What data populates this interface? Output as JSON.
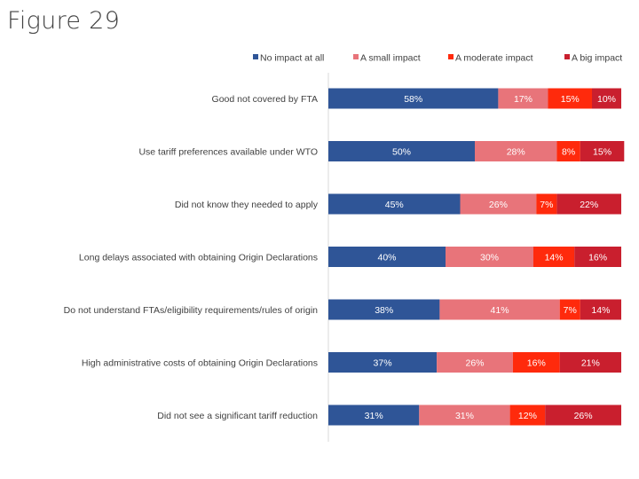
{
  "title": "Figure 29",
  "chart_data": {
    "type": "bar",
    "orientation": "horizontal",
    "stacked": true,
    "categories": [
      "Good not covered by FTA",
      "Use tariff preferences available under WTO",
      "Did not know they needed to apply",
      "Long delays associated with obtaining Origin Declarations",
      "Do not understand FTAs/eligibility requirements/rules of origin",
      "High administrative costs of obtaining Origin Declarations",
      "Did not see a significant tariff reduction"
    ],
    "series": [
      {
        "name": "No impact at all",
        "color": "#2F5597",
        "values": [
          58,
          50,
          45,
          40,
          38,
          37,
          31
        ]
      },
      {
        "name": "A small impact",
        "color": "#E8747A",
        "values": [
          17,
          28,
          26,
          30,
          41,
          26,
          31
        ]
      },
      {
        "name": "A moderate impact",
        "color": "#FF2A0C",
        "values": [
          15,
          8,
          7,
          14,
          7,
          16,
          12
        ]
      },
      {
        "name": "A big impact",
        "color": "#C91F2E",
        "values": [
          10,
          15,
          22,
          16,
          14,
          21,
          26
        ]
      }
    ],
    "value_suffix": "%",
    "legend_position": "top-right",
    "grid": false,
    "xlim": [
      0,
      100
    ]
  }
}
